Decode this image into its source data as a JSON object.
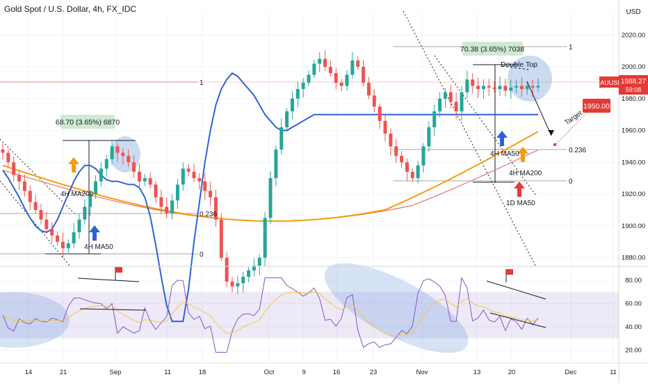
{
  "title": "Gold Spot / U.S. Dollar, 4h, FX_IDC",
  "currency": "USD",
  "chart_data": {
    "type": "candlestick",
    "symbol": "XAUUSD",
    "last_price": "1988.27",
    "countdown": "59:08",
    "price_axis": {
      "ylim": [
        1875,
        2035
      ],
      "ticks": [
        "2020.00",
        "2000.00",
        "1980.00",
        "1960.00",
        "1940.00",
        "1920.00",
        "1900.00",
        "1880.00"
      ],
      "tick_values": [
        2020,
        2000,
        1980,
        1960,
        1940,
        1920,
        1900,
        1880
      ]
    },
    "rsi_axis": {
      "ylim": [
        10,
        90
      ],
      "ticks": [
        "80.00",
        "60.00",
        "40.00",
        "20.00"
      ],
      "tick_values": [
        80,
        60,
        40,
        20
      ],
      "band": [
        30,
        70
      ]
    },
    "time_axis": {
      "labels": [
        "14",
        "21",
        "Sep",
        "11",
        "18",
        "Oct",
        "9",
        "16",
        "23",
        "Nov",
        "13",
        "20",
        "Dec",
        "11"
      ]
    },
    "target_label": "1950.00",
    "annotations": {
      "measure_left": "68.70 (3.65%) 6870",
      "measure_right": "70.38 (3.65%) 7038",
      "double_top": "Double Top",
      "target": "Target",
      "ma200_left": "4H MA200",
      "ma50_left": "4H MA50",
      "ma50_right": "4H MA50",
      "ma200_right": "4H MA200",
      "ma50_daily": "1D MA50",
      "fib_left_1": "1",
      "fib_left_236": "0.236",
      "fib_left_0": "0",
      "fib_right_1": "1",
      "fib_right_236": "0.236",
      "fib_right_0": "0"
    },
    "price_series": {
      "x": [
        0,
        1,
        2,
        3,
        4,
        5,
        6,
        7,
        8,
        9,
        10,
        11,
        12,
        13,
        14,
        15,
        16,
        17,
        18,
        19,
        20,
        21,
        22,
        23,
        24,
        25,
        26,
        27,
        28,
        29,
        30,
        31,
        32,
        33,
        34,
        35,
        36,
        37,
        38,
        39,
        40,
        41,
        42,
        43,
        44,
        45,
        46,
        47,
        48,
        49,
        50,
        51,
        52,
        53,
        54,
        55,
        56,
        57,
        58,
        59,
        60,
        61,
        62,
        63,
        64,
        65,
        66,
        67,
        68,
        69,
        70,
        71,
        72,
        73,
        74,
        75,
        76,
        77,
        78,
        79,
        80,
        81,
        82,
        83,
        84,
        85,
        86,
        87,
        88,
        89,
        90,
        91,
        92,
        93,
        94,
        95,
        96,
        97,
        98
      ],
      "close": [
        1946,
        1940,
        1932,
        1928,
        1922,
        1915,
        1910,
        1904,
        1898,
        1894,
        1890,
        1886,
        1889,
        1896,
        1904,
        1912,
        1920,
        1928,
        1936,
        1942,
        1950,
        1946,
        1944,
        1940,
        1934,
        1928,
        1930,
        1926,
        1918,
        1912,
        1908,
        1916,
        1926,
        1936,
        1934,
        1930,
        1928,
        1922,
        1918,
        1904,
        1880,
        1865,
        1862,
        1864,
        1868,
        1872,
        1875,
        1880,
        1905,
        1930,
        1948,
        1962,
        1972,
        1980,
        1986,
        1990,
        1995,
        2002,
        2005,
        2000,
        1996,
        1990,
        1988,
        1995,
        2004,
        2000,
        1990,
        1982,
        1975,
        1966,
        1958,
        1950,
        1944,
        1940,
        1934,
        1930,
        1938,
        1950,
        1962,
        1972,
        1980,
        1984,
        1978,
        1972,
        1984,
        1992,
        1988,
        1986,
        1988,
        1987,
        1986,
        1988,
        1985,
        1987,
        1988,
        1986,
        1988,
        1987,
        1988
      ],
      "ma50": [
        1935,
        1930,
        1924,
        1918,
        1911,
        1905,
        1900,
        1897,
        1896,
        1898,
        1904,
        1912,
        1920,
        1928,
        1934,
        1938,
        1938,
        1936,
        1932,
        1929,
        1928,
        1928,
        1927,
        1926,
        1926,
        1924,
        1918,
        1906,
        1888,
        1868,
        1850,
        1840,
        1840,
        1840,
        1860,
        1890,
        1915,
        1940,
        1960,
        1976,
        1986,
        1992,
        1996,
        1994,
        1990,
        1986,
        1982,
        1976,
        1970,
        1966,
        1962,
        1960,
        1960,
        1962,
        1964,
        1966,
        1968,
        1970,
        1970,
        1970,
        1970,
        1970,
        1970,
        1970,
        1970,
        1970,
        1970,
        1970,
        1970,
        1970,
        1970,
        1970,
        1970,
        1970,
        1970,
        1970,
        1970,
        1970,
        1970,
        1970,
        1970,
        1970,
        1970,
        1970,
        1970,
        1970,
        1970,
        1970,
        1970,
        1970,
        1970,
        1970,
        1970,
        1970,
        1970,
        1970,
        1970,
        1970,
        1970
      ]
    }
  }
}
